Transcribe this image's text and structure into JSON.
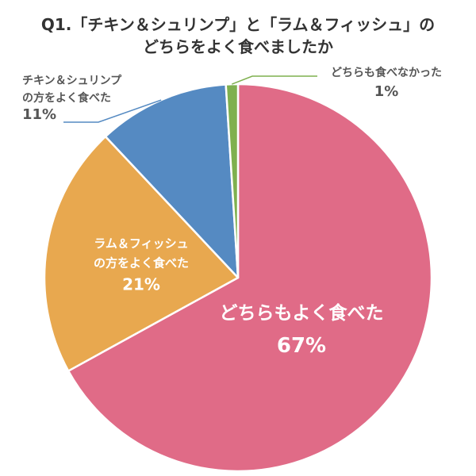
{
  "chart_data": {
    "type": "pie",
    "title_lines": [
      "Q1.「チキン＆シュリンプ」と「ラム＆フィッシュ」の",
      "どちらをよく食べましたか"
    ],
    "slices": [
      {
        "key": "both",
        "label_lines": [
          "どちらもよく食べた"
        ],
        "value": 67,
        "value_label": "67%",
        "color": "#e06b87"
      },
      {
        "key": "lamb",
        "label_lines": [
          "ラム＆フィッシュ",
          "の方をよく食べた"
        ],
        "value": 21,
        "value_label": "21%",
        "color": "#e8a84f"
      },
      {
        "key": "chicken",
        "label_lines": [
          "チキン＆シュリンプ",
          "の方をよく食べた"
        ],
        "value": 11,
        "value_label": "11%",
        "color": "#558ac2"
      },
      {
        "key": "neither",
        "label_lines": [
          "どちらも食べなかった"
        ],
        "value": 1,
        "value_label": "1%",
        "color": "#7fb04f"
      }
    ],
    "start": "top",
    "direction": "clockwise"
  }
}
